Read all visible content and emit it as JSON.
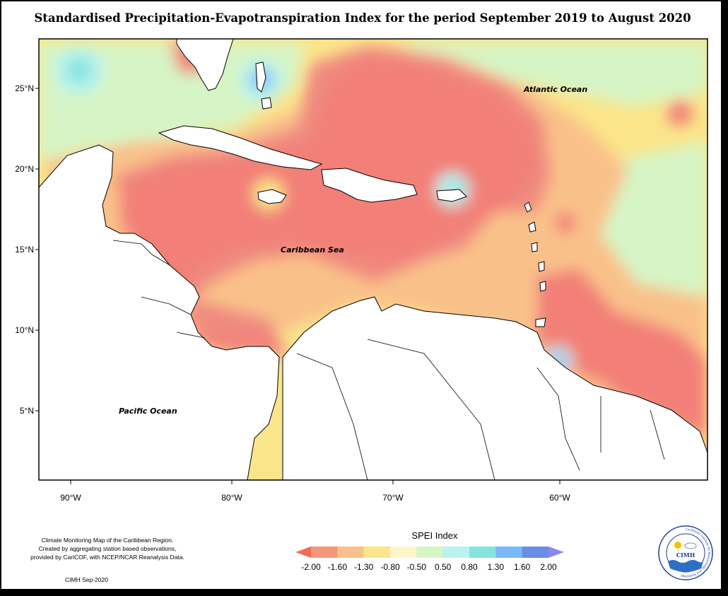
{
  "title": "Standardised Precipitation-Evapotranspiration Index for the period September 2019 to August 2020",
  "map": {
    "labels": {
      "atlantic": "Atlantic Ocean",
      "caribbean": "Caribbean Sea",
      "pacific": "Pacific Ocean"
    },
    "lat_ticks": [
      "25°N",
      "20°N",
      "15°N",
      "10°N",
      "5°N"
    ],
    "lon_ticks": [
      "90°W",
      "80°W",
      "70°W",
      "60°W"
    ]
  },
  "legend": {
    "title": "SPEI Index",
    "values": [
      "-2.00",
      "-1.60",
      "-1.30",
      "-0.80",
      "-0.50",
      "0.50",
      "0.80",
      "1.30",
      "1.60",
      "2.00"
    ],
    "colors": [
      "#f06a55",
      "#f4977a",
      "#f9c18a",
      "#fbe58a",
      "#fdf6c8",
      "#d6f5c6",
      "#b8f3f0",
      "#86e3dd",
      "#7ab8f7",
      "#6a8ee6",
      "#8d86ee"
    ]
  },
  "footnote": {
    "line1": "Climate Monitoring Map of the Caribbean Region.",
    "line2": "Created by aggregating station based observations,",
    "line3": "provided by CariCOF, with NCEP/NCAR Reanalysis Data.",
    "credit": "CIMH Sep-2020"
  },
  "logo": {
    "text": "CIMH",
    "ring_text": "Caribbean Institute for Meteorology and Hydrology"
  }
}
